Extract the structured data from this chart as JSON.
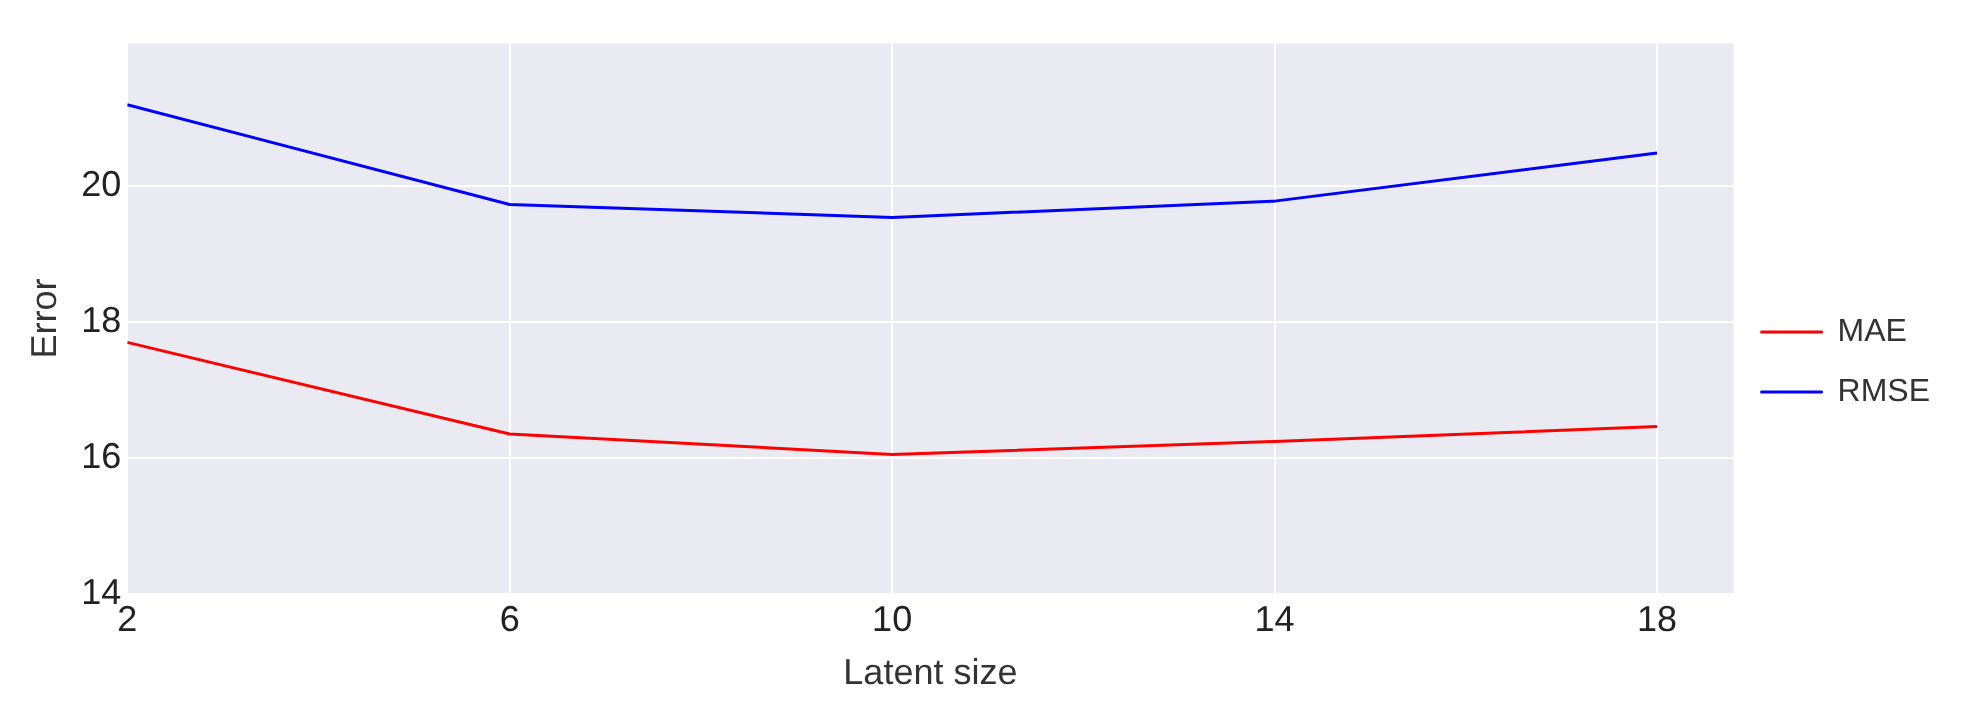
{
  "chart_data": {
    "type": "line",
    "xlabel": "Latent size",
    "ylabel": "Error",
    "x": [
      2,
      6,
      10,
      14,
      18
    ],
    "series": [
      {
        "name": "MAE",
        "color": "#ff0000",
        "values": [
          17.7,
          16.35,
          16.05,
          16.24,
          16.46
        ]
      },
      {
        "name": "RMSE",
        "color": "#0000ff",
        "values": [
          21.2,
          19.73,
          19.54,
          19.78,
          20.49
        ]
      }
    ],
    "xlim": [
      2,
      18.8
    ],
    "xticks": [
      2,
      6,
      10,
      14,
      18
    ],
    "ylim": [
      14,
      22.1
    ],
    "yticks": [
      14,
      16,
      18,
      20
    ],
    "grid": true,
    "legend": "right",
    "marker": "none",
    "line_style": "solid"
  }
}
